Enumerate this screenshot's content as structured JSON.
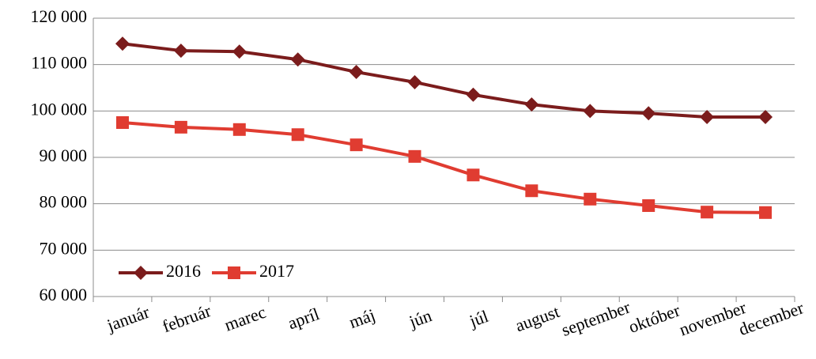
{
  "chart_data": {
    "type": "line",
    "categories": [
      "január",
      "február",
      "marec",
      "apríl",
      "máj",
      "jún",
      "júl",
      "august",
      "september",
      "október",
      "november",
      "december"
    ],
    "series": [
      {
        "name": "2016",
        "color": "#7b1c1c",
        "marker": "diamond",
        "values": [
          114500,
          113000,
          112800,
          111100,
          108400,
          106200,
          103500,
          101400,
          100000,
          99500,
          98700,
          98700
        ]
      },
      {
        "name": "2017",
        "color": "#e03c31",
        "marker": "square",
        "values": [
          97500,
          96500,
          96000,
          94900,
          92700,
          90200,
          86200,
          82800,
          81000,
          79600,
          78200,
          78100
        ]
      }
    ],
    "ylim": [
      60000,
      120000
    ],
    "yticks": [
      {
        "value": 60000,
        "label": "60 000"
      },
      {
        "value": 70000,
        "label": "70 000"
      },
      {
        "value": 80000,
        "label": "80 000"
      },
      {
        "value": 90000,
        "label": "90 000"
      },
      {
        "value": 100000,
        "label": "100 000"
      },
      {
        "value": 110000,
        "label": "110 000"
      },
      {
        "value": 120000,
        "label": "120 000"
      }
    ],
    "grid": true,
    "legend": "lower left"
  }
}
